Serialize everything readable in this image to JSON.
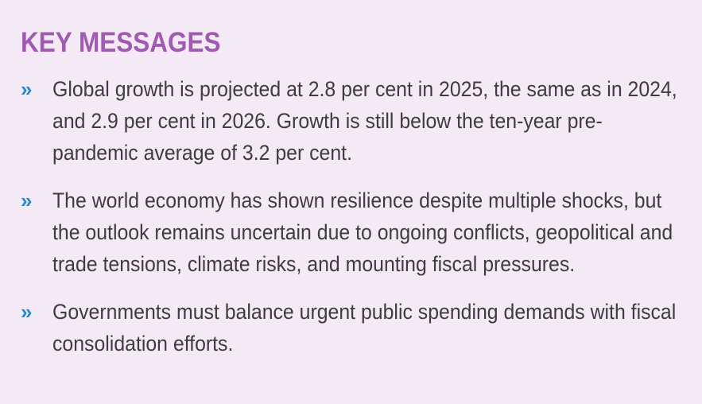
{
  "section": {
    "title": "KEY MESSAGES",
    "bullet_glyph": "»",
    "colors": {
      "background": "#f3eaf5",
      "title": "#a05ab0",
      "bullet": "#2b8ac9",
      "text": "#3d3d3d"
    },
    "messages": [
      {
        "text": "Global growth is projected at 2.8 per cent in 2025, the same as in 2024, and 2.9 per cent in 2026. Growth is still below the ten-year pre-pandemic average of 3.2 per cent."
      },
      {
        "text": "The world economy has shown resilience despite multiple shocks, but the outlook remains uncertain due to ongoing conflicts, geopolitical and trade tensions, climate risks, and mounting fiscal pressures."
      },
      {
        "text": "Governments must balance urgent public spending demands with fiscal consolidation efforts."
      }
    ]
  }
}
